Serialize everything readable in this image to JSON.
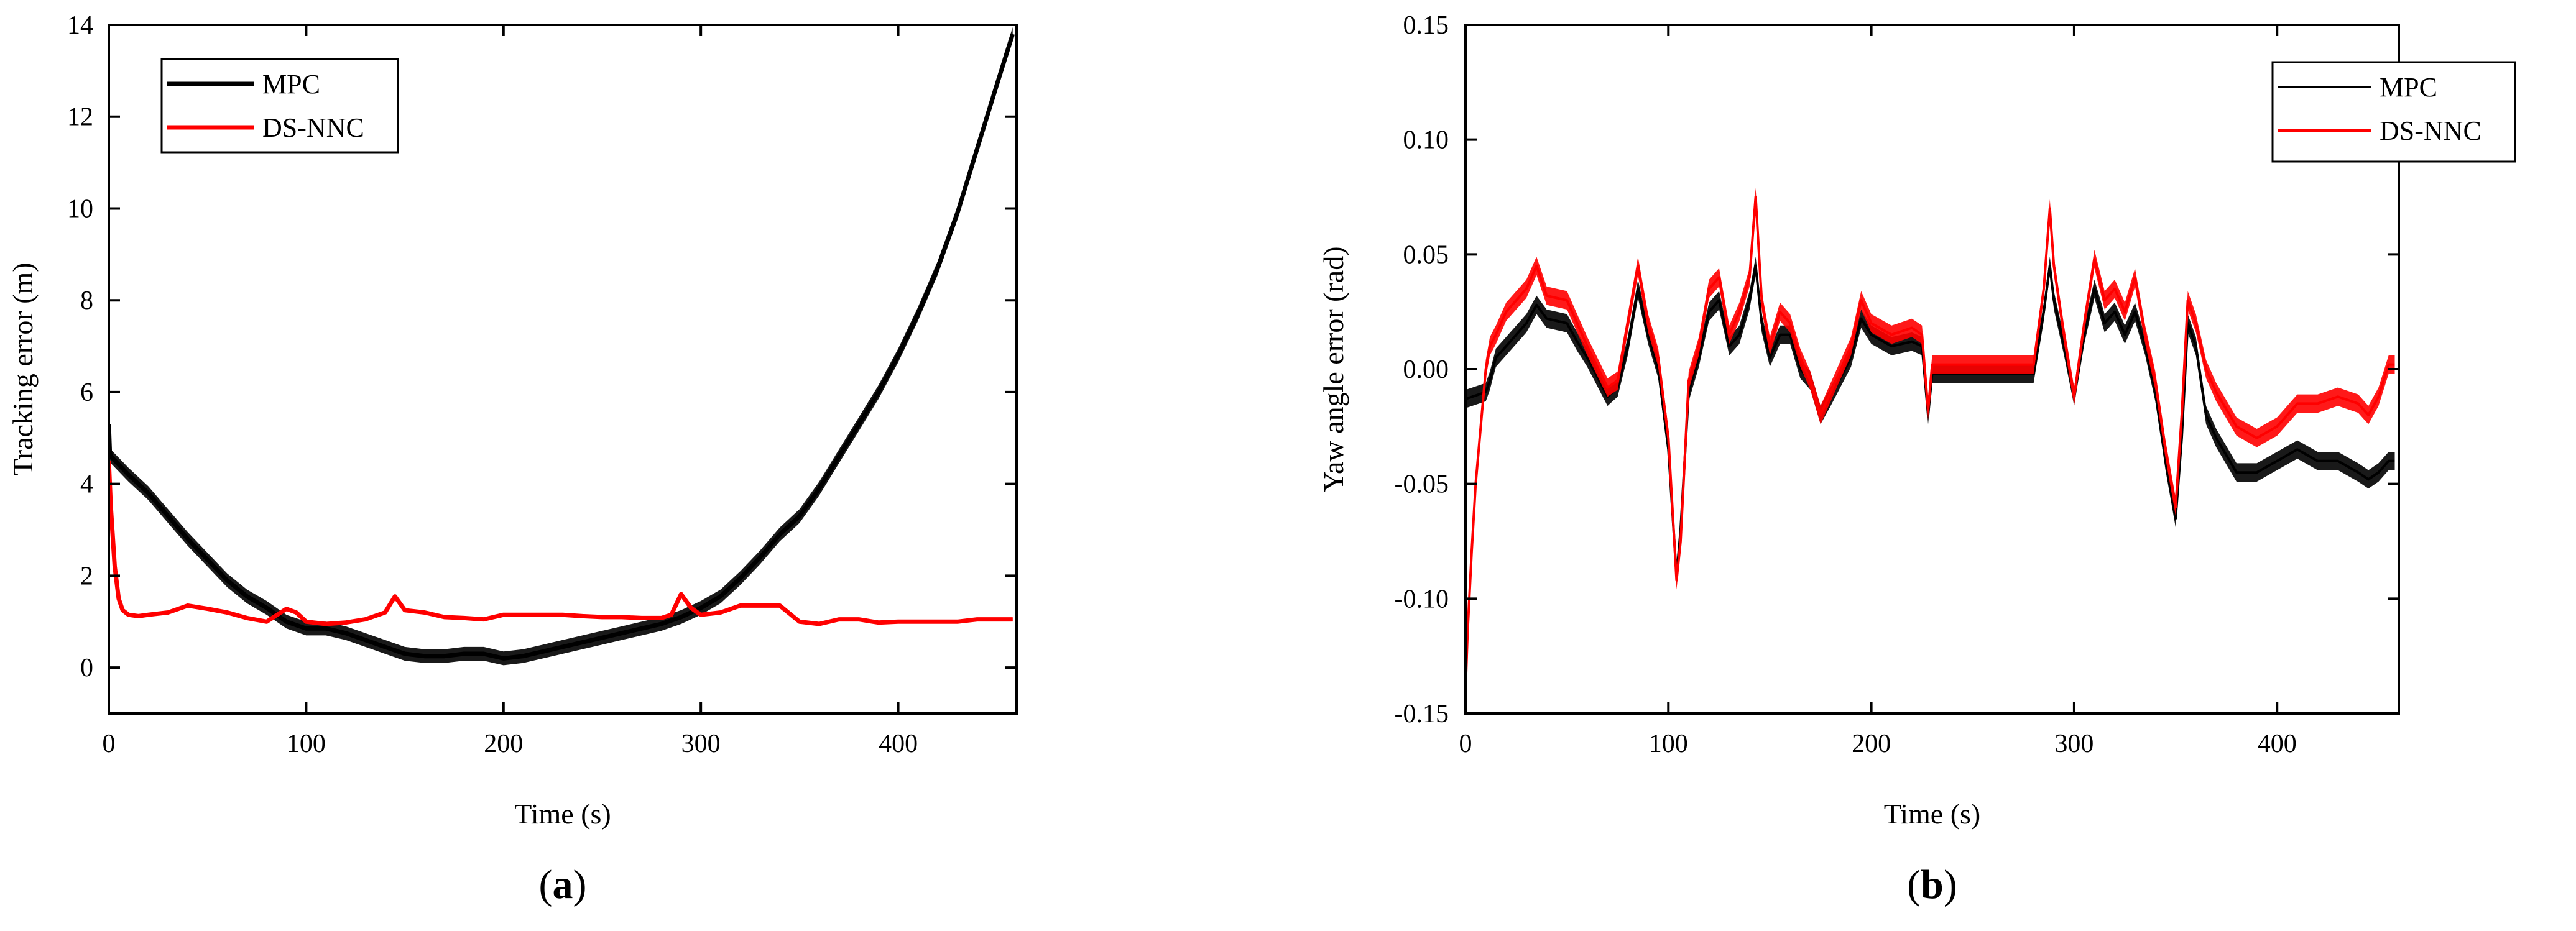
{
  "colors": {
    "mpc": "#000000",
    "dsnnc": "#ff0000"
  },
  "chart_data": [
    {
      "type": "line",
      "panel_label": {
        "open": "(",
        "letter": "a",
        "close": ")"
      },
      "xlabel": "Time (s)",
      "ylabel": "Tracking error (m)",
      "xlim": [
        0,
        460
      ],
      "ylim": [
        -1,
        14
      ],
      "xticks": [
        0,
        100,
        200,
        300,
        400
      ],
      "yticks": [
        0,
        2,
        4,
        6,
        8,
        10,
        12,
        14
      ],
      "grid": false,
      "legend": {
        "position": "top-left",
        "entries": [
          "MPC",
          "DS-NNC"
        ]
      },
      "series": [
        {
          "name": "MPC",
          "color": "#000000",
          "band": 0.15,
          "x": [
            0,
            0.5,
            1,
            10,
            20,
            30,
            40,
            50,
            60,
            70,
            80,
            90,
            100,
            110,
            120,
            130,
            140,
            150,
            160,
            170,
            180,
            190,
            200,
            210,
            220,
            230,
            240,
            250,
            260,
            270,
            280,
            290,
            300,
            310,
            320,
            330,
            340,
            350,
            360,
            370,
            380,
            390,
            400,
            410,
            420,
            430,
            440,
            450,
            458
          ],
          "y": [
            5.3,
            4.7,
            4.6,
            4.2,
            3.8,
            3.3,
            2.8,
            2.35,
            1.9,
            1.55,
            1.3,
            1.0,
            0.85,
            0.85,
            0.75,
            0.6,
            0.45,
            0.3,
            0.25,
            0.25,
            0.3,
            0.3,
            0.2,
            0.25,
            0.35,
            0.45,
            0.55,
            0.65,
            0.75,
            0.85,
            0.95,
            1.1,
            1.3,
            1.55,
            1.95,
            2.4,
            2.9,
            3.3,
            3.9,
            4.6,
            5.3,
            6.0,
            6.8,
            7.7,
            8.7,
            9.9,
            11.3,
            12.7,
            13.8
          ]
        },
        {
          "name": "DS-NNC",
          "color": "#ff0000",
          "band": 0.04,
          "x": [
            0,
            1,
            3,
            5,
            7,
            10,
            15,
            20,
            30,
            40,
            50,
            60,
            70,
            80,
            90,
            95,
            100,
            110,
            120,
            130,
            140,
            145,
            150,
            160,
            170,
            180,
            190,
            200,
            210,
            220,
            230,
            240,
            250,
            260,
            270,
            280,
            285,
            290,
            295,
            300,
            310,
            320,
            330,
            340,
            350,
            360,
            370,
            380,
            390,
            400,
            410,
            420,
            430,
            440,
            450,
            458
          ],
          "y": [
            4.5,
            3.5,
            2.2,
            1.5,
            1.25,
            1.15,
            1.12,
            1.15,
            1.2,
            1.35,
            1.28,
            1.2,
            1.08,
            1.0,
            1.28,
            1.2,
            1.0,
            0.95,
            0.98,
            1.05,
            1.2,
            1.55,
            1.25,
            1.2,
            1.1,
            1.08,
            1.05,
            1.15,
            1.15,
            1.15,
            1.15,
            1.12,
            1.1,
            1.1,
            1.08,
            1.08,
            1.15,
            1.6,
            1.3,
            1.15,
            1.2,
            1.35,
            1.35,
            1.35,
            1.0,
            0.95,
            1.05,
            1.05,
            0.98,
            1.0,
            1.0,
            1.0,
            1.0,
            1.05,
            1.05,
            1.05
          ]
        }
      ]
    },
    {
      "type": "line",
      "panel_label": {
        "open": "(",
        "letter": "b",
        "close": ")"
      },
      "xlabel": "Time (s)",
      "ylabel": "Yaw angle error (rad)",
      "xlim": [
        0,
        460
      ],
      "ylim": [
        -0.15,
        0.15
      ],
      "xticks": [
        0,
        100,
        200,
        300,
        400
      ],
      "yticks": [
        -0.15,
        -0.1,
        -0.05,
        0.0,
        0.05,
        0.1,
        0.15
      ],
      "ytick_labels": [
        "-0.15",
        "-0.10",
        "-0.05",
        "0.00",
        "0.05",
        "0.10",
        "0.15"
      ],
      "grid": false,
      "legend": {
        "position": "top-right",
        "entries": [
          "MPC",
          "DS-NNC"
        ]
      },
      "series": [
        {
          "name": "MPC",
          "color": "#000000",
          "band": 0.004,
          "x": [
            0,
            10,
            12,
            15,
            20,
            30,
            35,
            40,
            50,
            55,
            60,
            70,
            75,
            80,
            85,
            90,
            95,
            100,
            104,
            106,
            110,
            115,
            120,
            125,
            130,
            135,
            140,
            143,
            146,
            150,
            155,
            160,
            165,
            170,
            175,
            180,
            190,
            195,
            200,
            210,
            220,
            225,
            228,
            230,
            250,
            270,
            280,
            285,
            288,
            290,
            295,
            300,
            305,
            310,
            315,
            320,
            325,
            330,
            335,
            340,
            345,
            350,
            353,
            356,
            360,
            365,
            370,
            380,
            390,
            400,
            410,
            420,
            430,
            440,
            445,
            450,
            455,
            458
          ],
          "y": [
            -0.013,
            -0.01,
            -0.005,
            0.005,
            0.01,
            0.02,
            0.028,
            0.022,
            0.02,
            0.012,
            0.005,
            -0.012,
            -0.008,
            0.01,
            0.035,
            0.015,
            0.0,
            -0.035,
            -0.09,
            -0.07,
            -0.01,
            0.005,
            0.025,
            0.03,
            0.01,
            0.015,
            0.03,
            0.045,
            0.02,
            0.005,
            0.015,
            0.015,
            0.0,
            -0.005,
            -0.02,
            -0.012,
            0.005,
            0.022,
            0.015,
            0.01,
            0.012,
            0.01,
            -0.02,
            -0.002,
            -0.002,
            -0.002,
            -0.002,
            0.025,
            0.045,
            0.03,
            0.01,
            -0.012,
            0.015,
            0.035,
            0.02,
            0.025,
            0.015,
            0.025,
            0.01,
            -0.01,
            -0.04,
            -0.065,
            -0.03,
            0.02,
            0.01,
            -0.02,
            -0.03,
            -0.045,
            -0.045,
            -0.04,
            -0.035,
            -0.04,
            -0.04,
            -0.045,
            -0.048,
            -0.045,
            -0.04,
            -0.04
          ]
        },
        {
          "name": "DS-NNC",
          "color": "#ff0000",
          "band": 0.004,
          "x": [
            0,
            1,
            3,
            5,
            8,
            10,
            12,
            15,
            20,
            30,
            35,
            40,
            50,
            55,
            60,
            70,
            75,
            80,
            85,
            90,
            95,
            100,
            104,
            106,
            110,
            115,
            120,
            125,
            130,
            135,
            140,
            143,
            146,
            150,
            155,
            160,
            165,
            170,
            175,
            180,
            190,
            195,
            200,
            210,
            220,
            225,
            228,
            230,
            250,
            270,
            280,
            285,
            288,
            290,
            295,
            300,
            305,
            310,
            315,
            320,
            325,
            330,
            335,
            340,
            345,
            350,
            353,
            356,
            360,
            365,
            370,
            380,
            390,
            400,
            410,
            420,
            430,
            440,
            445,
            450,
            455,
            458
          ],
          "y": [
            -0.14,
            -0.115,
            -0.08,
            -0.05,
            -0.02,
            0.0,
            0.01,
            0.015,
            0.025,
            0.035,
            0.045,
            0.032,
            0.03,
            0.02,
            0.01,
            -0.008,
            -0.005,
            0.02,
            0.045,
            0.02,
            0.005,
            -0.03,
            -0.092,
            -0.075,
            -0.005,
            0.01,
            0.035,
            0.04,
            0.015,
            0.025,
            0.04,
            0.075,
            0.03,
            0.01,
            0.025,
            0.02,
            0.005,
            -0.005,
            -0.02,
            -0.01,
            0.01,
            0.03,
            0.02,
            0.015,
            0.018,
            0.015,
            -0.018,
            0.002,
            0.002,
            0.002,
            0.002,
            0.035,
            0.07,
            0.045,
            0.015,
            -0.012,
            0.02,
            0.048,
            0.03,
            0.035,
            0.025,
            0.04,
            0.015,
            -0.005,
            -0.035,
            -0.06,
            -0.02,
            0.03,
            0.02,
            0.0,
            -0.01,
            -0.025,
            -0.03,
            -0.025,
            -0.015,
            -0.015,
            -0.012,
            -0.015,
            -0.02,
            -0.012,
            0.002,
            0.002
          ]
        }
      ]
    }
  ]
}
